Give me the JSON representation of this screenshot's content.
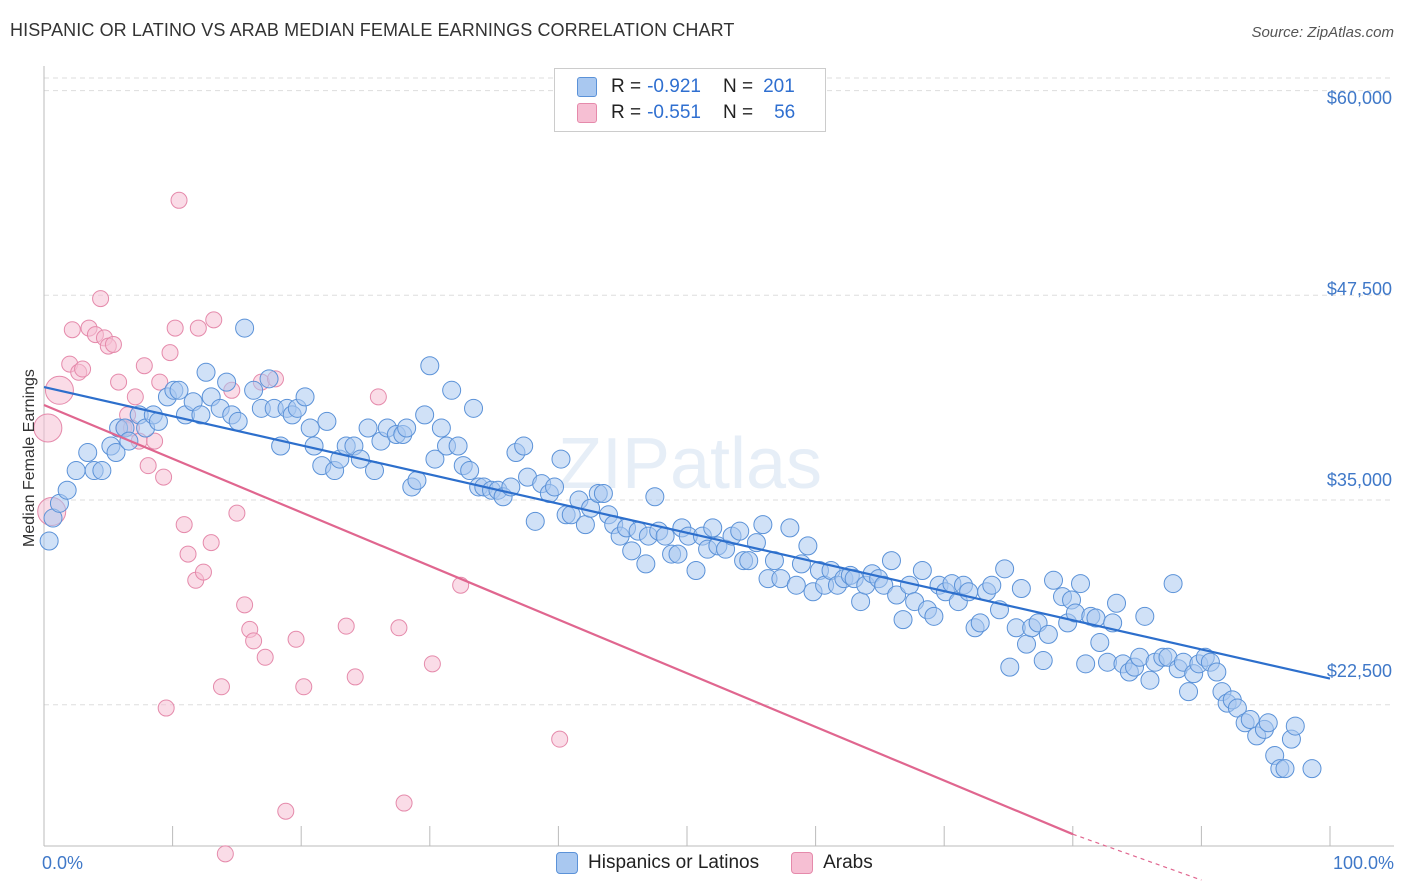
{
  "title": "HISPANIC OR LATINO VS ARAB MEDIAN FEMALE EARNINGS CORRELATION CHART",
  "source": "Source: ZipAtlas.com",
  "watermark": "ZIPatlas",
  "colors": {
    "blue_fill": "#a9c8f0",
    "blue_stroke": "#5b92d8",
    "blue_line": "#2d6fcc",
    "pink_fill": "#f6bfd3",
    "pink_stroke": "#e58aab",
    "pink_line": "#e0668f",
    "axis_text": "#3f78c8",
    "grid": "#dddddd"
  },
  "legend": {
    "rows": [
      {
        "r_label": "R =",
        "r_value": "-0.921",
        "n_label": "N =",
        "n_value": "201"
      },
      {
        "r_label": "R =",
        "r_value": "-0.551",
        "n_label": "N =",
        "n_value": "56"
      }
    ]
  },
  "bottom_legend": [
    "Hispanics or Latinos",
    "Arabs"
  ],
  "chart_data": {
    "type": "scatter",
    "title": "HISPANIC OR LATINO VS ARAB MEDIAN FEMALE EARNINGS CORRELATION CHART",
    "xlabel": "",
    "ylabel": "Median Female Earnings",
    "xlim": [
      0,
      100
    ],
    "ylim": [
      14000,
      61500
    ],
    "x_tick_labels": [
      "0.0%",
      "100.0%"
    ],
    "y_ticks": [
      22500,
      35000,
      47500,
      60000
    ],
    "y_tick_labels": [
      "$22,500",
      "$35,000",
      "$47,500",
      "$60,000"
    ],
    "grid": true,
    "legend_position": "top-center",
    "series": [
      {
        "name": "Hispanics or Latinos",
        "R": -0.921,
        "N": 201,
        "trend": {
          "x": [
            0,
            100
          ],
          "y": [
            41900,
            24100
          ]
        },
        "points": [
          [
            0.4,
            32.5
          ],
          [
            0.7,
            33.9
          ],
          [
            1.2,
            34.8
          ],
          [
            1.8,
            35.6
          ],
          [
            2.5,
            36.8
          ],
          [
            3.4,
            37.9
          ],
          [
            3.9,
            36.8
          ],
          [
            4.5,
            36.8
          ],
          [
            5.2,
            38.3
          ],
          [
            5.6,
            37.9
          ],
          [
            5.8,
            39.4
          ],
          [
            6.3,
            39.4
          ],
          [
            6.6,
            38.6
          ],
          [
            7.4,
            40.2
          ],
          [
            7.9,
            39.4
          ],
          [
            8.5,
            40.2
          ],
          [
            8.9,
            39.8
          ],
          [
            9.6,
            41.3
          ],
          [
            10.1,
            41.7
          ],
          [
            10.5,
            41.7
          ],
          [
            11.0,
            40.2
          ],
          [
            11.6,
            41.0
          ],
          [
            12.2,
            40.2
          ],
          [
            12.6,
            42.8
          ],
          [
            13.0,
            41.3
          ],
          [
            13.7,
            40.6
          ],
          [
            14.2,
            42.2
          ],
          [
            14.6,
            40.2
          ],
          [
            15.1,
            39.8
          ],
          [
            15.6,
            45.5
          ],
          [
            16.3,
            41.7
          ],
          [
            16.9,
            40.6
          ],
          [
            17.5,
            42.4
          ],
          [
            17.9,
            40.6
          ],
          [
            18.4,
            38.3
          ],
          [
            18.9,
            40.6
          ],
          [
            19.3,
            40.2
          ],
          [
            19.7,
            40.6
          ],
          [
            20.3,
            41.3
          ],
          [
            20.7,
            39.4
          ],
          [
            21.0,
            38.3
          ],
          [
            21.6,
            37.1
          ],
          [
            22.0,
            39.8
          ],
          [
            22.6,
            36.8
          ],
          [
            23.0,
            37.5
          ],
          [
            23.5,
            38.3
          ],
          [
            24.1,
            38.3
          ],
          [
            24.6,
            37.5
          ],
          [
            25.2,
            39.4
          ],
          [
            25.7,
            36.8
          ],
          [
            26.2,
            38.6
          ],
          [
            26.7,
            39.4
          ],
          [
            27.4,
            39.0
          ],
          [
            27.9,
            39.0
          ],
          [
            28.2,
            39.4
          ],
          [
            28.6,
            35.8
          ],
          [
            29.0,
            36.2
          ],
          [
            29.6,
            40.2
          ],
          [
            30.0,
            43.2
          ],
          [
            30.4,
            37.5
          ],
          [
            30.9,
            39.4
          ],
          [
            31.3,
            38.3
          ],
          [
            31.7,
            41.7
          ],
          [
            32.2,
            38.3
          ],
          [
            32.6,
            37.1
          ],
          [
            33.1,
            36.8
          ],
          [
            33.4,
            40.6
          ],
          [
            33.8,
            35.8
          ],
          [
            34.2,
            35.8
          ],
          [
            34.8,
            35.6
          ],
          [
            35.3,
            35.6
          ],
          [
            35.7,
            35.2
          ],
          [
            36.3,
            35.8
          ],
          [
            36.7,
            37.9
          ],
          [
            37.3,
            38.3
          ],
          [
            37.6,
            36.4
          ],
          [
            38.2,
            33.7
          ],
          [
            38.7,
            36.0
          ],
          [
            39.3,
            35.4
          ],
          [
            39.7,
            35.8
          ],
          [
            40.2,
            37.5
          ],
          [
            40.6,
            34.1
          ],
          [
            41.0,
            34.1
          ],
          [
            41.6,
            35.0
          ],
          [
            42.1,
            33.5
          ],
          [
            42.5,
            34.5
          ],
          [
            43.1,
            35.4
          ],
          [
            43.5,
            35.4
          ],
          [
            43.9,
            34.1
          ],
          [
            44.3,
            33.5
          ],
          [
            44.8,
            32.8
          ],
          [
            45.3,
            33.3
          ],
          [
            45.7,
            31.9
          ],
          [
            46.2,
            33.1
          ],
          [
            46.8,
            31.1
          ],
          [
            47.0,
            32.8
          ],
          [
            47.5,
            35.2
          ],
          [
            47.8,
            33.1
          ],
          [
            48.3,
            32.8
          ],
          [
            48.8,
            31.7
          ],
          [
            49.3,
            31.7
          ],
          [
            49.6,
            33.3
          ],
          [
            50.1,
            32.8
          ],
          [
            50.7,
            30.7
          ],
          [
            51.2,
            32.8
          ],
          [
            51.6,
            32.0
          ],
          [
            52.0,
            33.3
          ],
          [
            52.4,
            32.2
          ],
          [
            53.0,
            32.0
          ],
          [
            53.5,
            32.8
          ],
          [
            54.1,
            33.1
          ],
          [
            54.4,
            31.3
          ],
          [
            54.8,
            31.3
          ],
          [
            55.4,
            32.4
          ],
          [
            55.9,
            33.5
          ],
          [
            56.3,
            30.2
          ],
          [
            56.8,
            31.3
          ],
          [
            57.3,
            30.2
          ],
          [
            58.0,
            33.3
          ],
          [
            58.5,
            29.8
          ],
          [
            58.9,
            31.1
          ],
          [
            59.4,
            32.2
          ],
          [
            59.8,
            29.4
          ],
          [
            60.3,
            30.7
          ],
          [
            60.7,
            29.8
          ],
          [
            61.2,
            30.7
          ],
          [
            61.7,
            29.8
          ],
          [
            62.2,
            30.2
          ],
          [
            62.7,
            30.4
          ],
          [
            63.0,
            30.2
          ],
          [
            63.5,
            28.8
          ],
          [
            63.9,
            29.8
          ],
          [
            64.4,
            30.5
          ],
          [
            64.9,
            30.2
          ],
          [
            65.3,
            29.8
          ],
          [
            65.9,
            31.3
          ],
          [
            66.3,
            29.2
          ],
          [
            66.8,
            27.7
          ],
          [
            67.3,
            29.8
          ],
          [
            67.7,
            28.8
          ],
          [
            68.3,
            30.7
          ],
          [
            68.7,
            28.3
          ],
          [
            69.2,
            27.9
          ],
          [
            69.6,
            29.8
          ],
          [
            70.1,
            29.4
          ],
          [
            70.6,
            29.9
          ],
          [
            71.1,
            28.8
          ],
          [
            71.5,
            29.8
          ],
          [
            71.9,
            29.4
          ],
          [
            72.4,
            27.2
          ],
          [
            72.8,
            27.5
          ],
          [
            73.3,
            29.4
          ],
          [
            73.7,
            29.8
          ],
          [
            74.3,
            28.3
          ],
          [
            74.7,
            30.8
          ],
          [
            75.1,
            24.8
          ],
          [
            75.6,
            27.2
          ],
          [
            76.0,
            29.6
          ],
          [
            76.4,
            26.2
          ],
          [
            76.8,
            27.2
          ],
          [
            77.3,
            27.5
          ],
          [
            77.7,
            25.2
          ],
          [
            78.1,
            26.8
          ],
          [
            78.5,
            30.1
          ],
          [
            79.2,
            29.1
          ],
          [
            79.6,
            27.5
          ],
          [
            79.9,
            28.9
          ],
          [
            80.2,
            28.1
          ],
          [
            80.6,
            29.9
          ],
          [
            81.0,
            25.0
          ],
          [
            81.4,
            27.9
          ],
          [
            81.8,
            27.8
          ],
          [
            82.1,
            26.3
          ],
          [
            82.7,
            25.1
          ],
          [
            83.1,
            27.5
          ],
          [
            83.4,
            28.7
          ],
          [
            83.9,
            25.0
          ],
          [
            84.4,
            24.5
          ],
          [
            84.8,
            24.8
          ],
          [
            85.2,
            25.4
          ],
          [
            85.6,
            27.9
          ],
          [
            86.0,
            24.0
          ],
          [
            86.4,
            25.1
          ],
          [
            87.0,
            25.4
          ],
          [
            87.4,
            25.4
          ],
          [
            87.8,
            29.9
          ],
          [
            88.2,
            24.7
          ],
          [
            88.6,
            25.1
          ],
          [
            89.0,
            23.3
          ],
          [
            89.4,
            24.4
          ],
          [
            89.8,
            25.0
          ],
          [
            90.3,
            25.4
          ],
          [
            90.7,
            25.1
          ],
          [
            91.2,
            24.5
          ],
          [
            91.6,
            23.3
          ],
          [
            92.0,
            22.6
          ],
          [
            92.4,
            22.8
          ],
          [
            92.8,
            22.3
          ],
          [
            93.4,
            21.4
          ],
          [
            93.8,
            21.6
          ],
          [
            94.3,
            20.6
          ],
          [
            94.9,
            21.0
          ],
          [
            95.2,
            21.4
          ],
          [
            95.7,
            19.4
          ],
          [
            96.1,
            18.6
          ],
          [
            96.5,
            18.6
          ],
          [
            97.0,
            20.4
          ],
          [
            97.3,
            21.2
          ],
          [
            98.6,
            18.6
          ]
        ]
      },
      {
        "name": "Arabs",
        "R": -0.551,
        "N": 56,
        "trend": {
          "x": [
            0,
            80
          ],
          "y": [
            40800,
            14600
          ]
        },
        "trend_dashed": {
          "x": [
            80,
            90
          ],
          "y": [
            14600,
            11800
          ]
        },
        "points": [
          [
            0.3,
            39.4
          ],
          [
            0.6,
            34.3
          ],
          [
            1.2,
            41.7
          ],
          [
            2.0,
            43.3
          ],
          [
            2.2,
            45.4
          ],
          [
            2.7,
            42.8
          ],
          [
            3.0,
            43.0
          ],
          [
            3.5,
            45.5
          ],
          [
            4.0,
            45.1
          ],
          [
            4.4,
            47.3
          ],
          [
            4.7,
            44.9
          ],
          [
            5.0,
            44.4
          ],
          [
            5.4,
            44.5
          ],
          [
            5.8,
            42.2
          ],
          [
            6.2,
            39.4
          ],
          [
            6.5,
            40.2
          ],
          [
            6.8,
            39.4
          ],
          [
            7.1,
            41.3
          ],
          [
            7.4,
            38.6
          ],
          [
            7.8,
            43.2
          ],
          [
            8.1,
            37.1
          ],
          [
            8.6,
            38.6
          ],
          [
            9.0,
            42.2
          ],
          [
            9.3,
            36.4
          ],
          [
            9.5,
            22.3
          ],
          [
            9.8,
            44.0
          ],
          [
            10.2,
            45.5
          ],
          [
            10.5,
            53.3
          ],
          [
            10.9,
            33.5
          ],
          [
            11.2,
            31.7
          ],
          [
            11.8,
            30.1
          ],
          [
            12.0,
            45.5
          ],
          [
            12.4,
            30.6
          ],
          [
            13.0,
            32.4
          ],
          [
            13.2,
            46.0
          ],
          [
            13.8,
            23.6
          ],
          [
            14.1,
            13.4
          ],
          [
            14.6,
            41.7
          ],
          [
            15.0,
            34.2
          ],
          [
            15.6,
            28.6
          ],
          [
            16.0,
            27.1
          ],
          [
            16.3,
            26.4
          ],
          [
            16.9,
            42.2
          ],
          [
            17.2,
            25.4
          ],
          [
            18.0,
            42.4
          ],
          [
            18.8,
            16.0
          ],
          [
            19.6,
            26.5
          ],
          [
            20.2,
            23.6
          ],
          [
            23.5,
            27.3
          ],
          [
            24.2,
            24.2
          ],
          [
            26.0,
            41.3
          ],
          [
            27.6,
            27.2
          ],
          [
            28.0,
            16.5
          ],
          [
            30.2,
            25.0
          ],
          [
            32.4,
            29.8
          ],
          [
            40.1,
            20.4
          ]
        ]
      }
    ]
  }
}
